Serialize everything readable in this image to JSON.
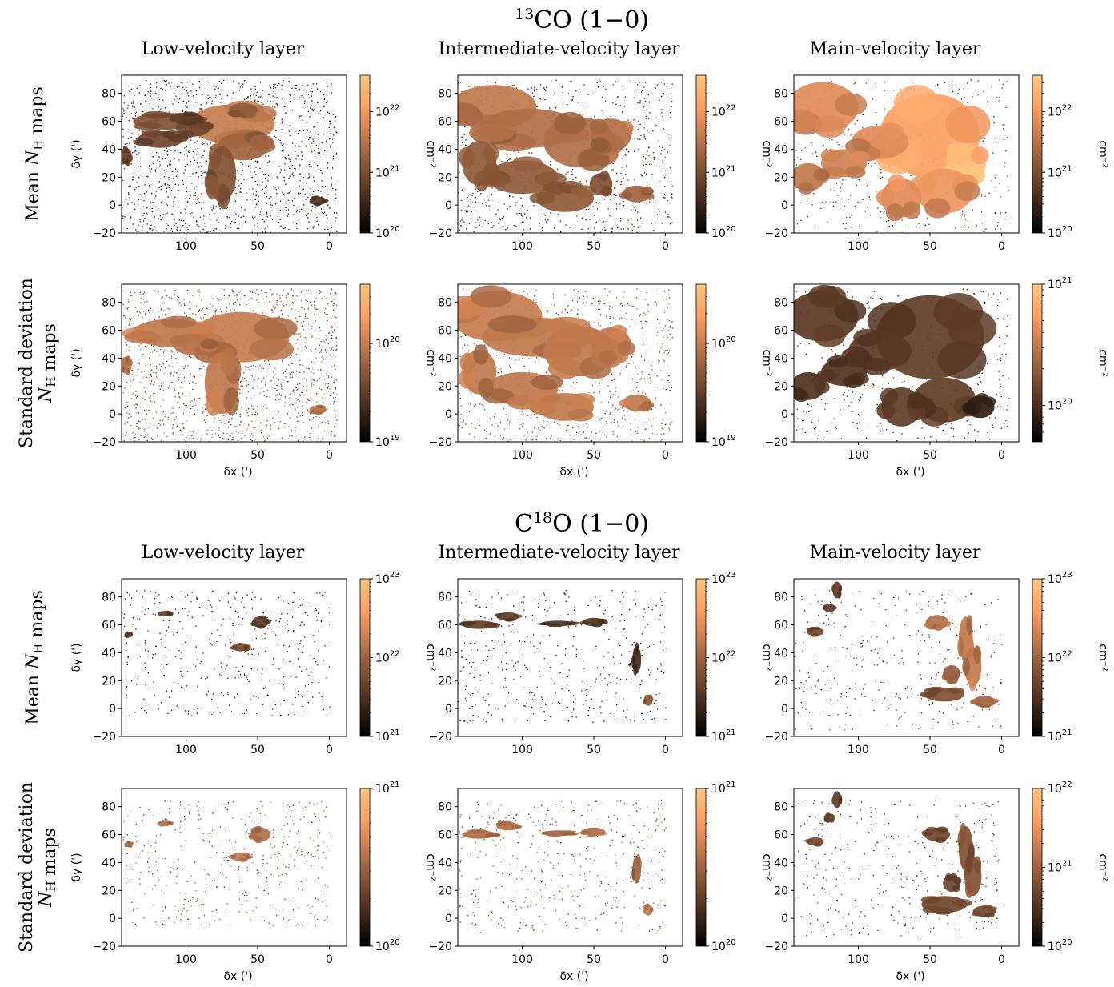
{
  "figure": {
    "sections": [
      {
        "tracer": "CO (1−0)",
        "tracer_superscript": "13",
        "tracer_prefix": "",
        "columns": [
          "Low-velocity layer",
          "Intermediate-velocity layer",
          "Main-velocity layer"
        ],
        "rows": [
          {
            "label_lines": [
              "Mean N_H maps"
            ]
          },
          {
            "label_lines": [
              "Standard deviation",
              "N_H maps"
            ]
          }
        ]
      },
      {
        "tracer": "O (1−0)",
        "tracer_superscript": "18",
        "tracer_prefix": "C",
        "columns": [
          "Low-velocity layer",
          "Intermediate-velocity layer",
          "Main-velocity layer"
        ],
        "rows": [
          {
            "label_lines": [
              "Mean N_H maps"
            ]
          },
          {
            "label_lines": [
              "Standard deviation",
              "N_H maps"
            ]
          }
        ]
      }
    ],
    "axis": {
      "xlabel": "δx (')",
      "ylabel": "δy (')",
      "xticks": [
        "100",
        "50",
        "0"
      ],
      "yticks": [
        "−20",
        "0",
        "20",
        "40",
        "60",
        "80"
      ],
      "colorbar_label": "cm⁻²"
    },
    "colormap": {
      "name": "copper",
      "low": "#000000",
      "high": "#ffc77f"
    }
  },
  "chart_data": [
    {
      "type": "heatmap",
      "id": "13co-mean-low",
      "tracer": "13CO (1−0)",
      "layer": "Low-velocity layer",
      "quantity": "Mean N_H",
      "xlabel": "δx (')",
      "ylabel": "δy (')",
      "xlim": [
        145,
        -12
      ],
      "ylim": [
        -20,
        93
      ],
      "xticks": [
        100,
        50,
        0
      ],
      "yticks": [
        -20,
        0,
        20,
        40,
        60,
        80
      ],
      "colorbar": {
        "scale": "log",
        "range": [
          1e+20,
          4e+22
        ],
        "ticks": [
          "10^20",
          "10^21",
          "10^22"
        ],
        "label": "cm^-2"
      },
      "blobs": [
        [
          68,
          58,
          30,
          14,
          0.62
        ],
        [
          60,
          42,
          18,
          10,
          0.5
        ],
        [
          115,
          60,
          22,
          6,
          0.4
        ],
        [
          118,
          47,
          16,
          6,
          0.35
        ],
        [
          75,
          22,
          10,
          20,
          0.4
        ],
        [
          142,
          35,
          4,
          6,
          0.3
        ],
        [
          95,
          55,
          12,
          6,
          0.35
        ],
        [
          60,
          68,
          10,
          5,
          0.45
        ],
        [
          8,
          3,
          6,
          3,
          0.25
        ],
        [
          100,
          62,
          12,
          4,
          0.3
        ]
      ],
      "speckle": {
        "n": 1400,
        "region": [
          145,
          -5,
          -20,
          90
        ],
        "level": 0.15
      }
    },
    {
      "type": "heatmap",
      "id": "13co-mean-int",
      "tracer": "13CO (1−0)",
      "layer": "Intermediate-velocity layer",
      "quantity": "Mean N_H",
      "xlabel": "δx (')",
      "ylabel": "δy (')",
      "xlim": [
        145,
        -12
      ],
      "ylim": [
        -20,
        93
      ],
      "xticks": [
        100,
        50,
        0
      ],
      "yticks": [
        -20,
        0,
        20,
        40,
        60,
        80
      ],
      "colorbar": {
        "scale": "log",
        "range": [
          1e+20,
          4e+22
        ],
        "ticks": [
          "10^20",
          "10^21",
          "10^22"
        ],
        "label": "cm^-2"
      },
      "blobs": [
        [
          120,
          70,
          30,
          16,
          0.6
        ],
        [
          95,
          55,
          35,
          14,
          0.55
        ],
        [
          60,
          45,
          25,
          18,
          0.55
        ],
        [
          38,
          50,
          14,
          12,
          0.55
        ],
        [
          20,
          8,
          10,
          6,
          0.5
        ],
        [
          100,
          20,
          25,
          12,
          0.45
        ],
        [
          70,
          5,
          20,
          10,
          0.45
        ],
        [
          130,
          30,
          12,
          16,
          0.45
        ],
        [
          45,
          15,
          8,
          8,
          0.4
        ]
      ],
      "speckle": {
        "n": 900,
        "region": [
          145,
          -5,
          -20,
          90
        ],
        "level": 0.2
      }
    },
    {
      "type": "heatmap",
      "id": "13co-mean-main",
      "tracer": "13CO (1−0)",
      "layer": "Main-velocity layer",
      "quantity": "Mean N_H",
      "xlabel": "δx (')",
      "ylabel": "δy (')",
      "xlim": [
        145,
        -12
      ],
      "ylim": [
        -20,
        93
      ],
      "xticks": [
        100,
        50,
        0
      ],
      "yticks": [
        -20,
        0,
        20,
        40,
        60,
        80
      ],
      "colorbar": {
        "scale": "log",
        "range": [
          1e+20,
          4e+22
        ],
        "ticks": [
          "10^20",
          "10^21",
          "10^22"
        ],
        "label": "cm^-2"
      },
      "blobs": [
        [
          50,
          50,
          35,
          30,
          0.8
        ],
        [
          25,
          30,
          14,
          14,
          0.95
        ],
        [
          125,
          70,
          25,
          18,
          0.7
        ],
        [
          85,
          45,
          20,
          12,
          0.7
        ],
        [
          40,
          10,
          20,
          16,
          0.75
        ],
        [
          110,
          30,
          16,
          10,
          0.65
        ],
        [
          135,
          20,
          12,
          10,
          0.6
        ],
        [
          70,
          5,
          14,
          14,
          0.7
        ]
      ],
      "speckle": {
        "n": 500,
        "region": [
          145,
          -5,
          -20,
          90
        ],
        "level": 0.3
      }
    },
    {
      "type": "heatmap",
      "id": "13co-std-low",
      "tracer": "13CO (1−0)",
      "layer": "Low-velocity layer",
      "quantity": "Standard deviation N_H",
      "xlabel": "δx (')",
      "ylabel": "δy (')",
      "xlim": [
        145,
        -12
      ],
      "ylim": [
        -20,
        93
      ],
      "xticks": [
        100,
        50,
        0
      ],
      "yticks": [
        -20,
        0,
        20,
        40,
        60,
        80
      ],
      "colorbar": {
        "scale": "log",
        "range": [
          1e+19,
          4e+20
        ],
        "ticks": [
          "10^19",
          "10^20"
        ],
        "label": "cm^-2"
      },
      "blobs": [
        [
          62,
          55,
          34,
          18,
          0.62
        ],
        [
          110,
          58,
          28,
          10,
          0.6
        ],
        [
          75,
          22,
          12,
          22,
          0.6
        ],
        [
          142,
          35,
          4,
          6,
          0.55
        ],
        [
          8,
          3,
          6,
          3,
          0.55
        ],
        [
          95,
          50,
          14,
          8,
          0.58
        ]
      ],
      "speckle": {
        "n": 1500,
        "region": [
          145,
          -5,
          -20,
          90
        ],
        "level": 0.5
      }
    },
    {
      "type": "heatmap",
      "id": "13co-std-int",
      "tracer": "13CO (1−0)",
      "layer": "Intermediate-velocity layer",
      "quantity": "Standard deviation N_H",
      "xlabel": "δx (')",
      "ylabel": "δy (')",
      "xlim": [
        145,
        -12
      ],
      "ylim": [
        -20,
        93
      ],
      "xticks": [
        100,
        50,
        0
      ],
      "yticks": [
        -20,
        0,
        20,
        40,
        60,
        80
      ],
      "colorbar": {
        "scale": "log",
        "range": [
          1e+19,
          4e+20
        ],
        "ticks": [
          "10^19",
          "10^20"
        ],
        "label": "cm^-2"
      },
      "blobs": [
        [
          118,
          70,
          32,
          18,
          0.62
        ],
        [
          90,
          55,
          38,
          14,
          0.6
        ],
        [
          60,
          45,
          25,
          18,
          0.6
        ],
        [
          38,
          50,
          14,
          12,
          0.6
        ],
        [
          20,
          8,
          10,
          6,
          0.6
        ],
        [
          100,
          18,
          25,
          12,
          0.6
        ],
        [
          70,
          5,
          20,
          10,
          0.6
        ],
        [
          130,
          30,
          12,
          16,
          0.6
        ]
      ],
      "speckle": {
        "n": 900,
        "region": [
          145,
          -5,
          -20,
          90
        ],
        "level": 0.5
      }
    },
    {
      "type": "heatmap",
      "id": "13co-std-main",
      "tracer": "13CO (1−0)",
      "layer": "Main-velocity layer",
      "quantity": "Standard deviation N_H",
      "xlabel": "δx (')",
      "ylabel": "δy (')",
      "xlim": [
        145,
        -12
      ],
      "ylim": [
        -20,
        93
      ],
      "xticks": [
        100,
        50,
        0
      ],
      "yticks": [
        -20,
        0,
        20,
        40,
        60,
        80
      ],
      "colorbar": {
        "scale": "log",
        "range": [
          5e+19,
          1e+21
        ],
        "ticks": [
          "10^20",
          "10^21"
        ],
        "label": "cm^-2"
      },
      "blobs": [
        [
          50,
          55,
          38,
          30,
          0.3
        ],
        [
          125,
          70,
          25,
          18,
          0.28
        ],
        [
          85,
          45,
          22,
          14,
          0.28
        ],
        [
          40,
          10,
          22,
          16,
          0.3
        ],
        [
          110,
          30,
          16,
          10,
          0.25
        ],
        [
          135,
          20,
          12,
          10,
          0.25
        ],
        [
          70,
          5,
          14,
          14,
          0.3
        ],
        [
          15,
          5,
          10,
          8,
          0.15
        ]
      ],
      "speckle": {
        "n": 500,
        "region": [
          145,
          -5,
          -20,
          90
        ],
        "level": 0.2
      }
    },
    {
      "type": "heatmap",
      "id": "c18o-mean-low",
      "tracer": "C18O (1−0)",
      "layer": "Low-velocity layer",
      "quantity": "Mean N_H",
      "xlabel": "δx (')",
      "ylabel": "δy (')",
      "xlim": [
        145,
        -12
      ],
      "ylim": [
        -20,
        93
      ],
      "xticks": [
        100,
        50,
        0
      ],
      "yticks": [
        -20,
        0,
        20,
        40,
        60,
        80
      ],
      "colorbar": {
        "scale": "log",
        "range": [
          1e+21,
          1e+23
        ],
        "ticks": [
          "10^21",
          "10^22",
          "10^23"
        ],
        "label": "cm^-2"
      },
      "blobs": [
        [
          48,
          62,
          6,
          4,
          0.3
        ],
        [
          62,
          44,
          6,
          3,
          0.35
        ],
        [
          115,
          68,
          5,
          2,
          0.3
        ],
        [
          140,
          53,
          3,
          2,
          0.25
        ]
      ],
      "speckle": {
        "n": 450,
        "region": [
          145,
          0,
          -5,
          85
        ],
        "level": 0.15
      }
    },
    {
      "type": "heatmap",
      "id": "c18o-mean-int",
      "tracer": "C18O (1−0)",
      "layer": "Intermediate-velocity layer",
      "quantity": "Mean N_H",
      "xlabel": "δx (')",
      "ylabel": "δy (')",
      "xlim": [
        145,
        -12
      ],
      "ylim": [
        -20,
        93
      ],
      "xticks": [
        100,
        50,
        0
      ],
      "yticks": [
        -20,
        0,
        20,
        40,
        60,
        80
      ],
      "colorbar": {
        "scale": "log",
        "range": [
          1e+21,
          1e+23
        ],
        "ticks": [
          "10^21",
          "10^22",
          "10^23"
        ],
        "label": "cm^-2"
      },
      "blobs": [
        [
          130,
          60,
          12,
          3,
          0.3
        ],
        [
          110,
          66,
          8,
          3,
          0.3
        ],
        [
          75,
          61,
          12,
          2,
          0.25
        ],
        [
          50,
          62,
          8,
          3,
          0.25
        ],
        [
          12,
          6,
          3,
          4,
          0.45
        ],
        [
          20,
          35,
          3,
          10,
          0.2
        ]
      ],
      "speckle": {
        "n": 450,
        "region": [
          145,
          0,
          -10,
          85
        ],
        "level": 0.15
      }
    },
    {
      "type": "heatmap",
      "id": "c18o-mean-main",
      "tracer": "C18O (1−0)",
      "layer": "Main-velocity layer",
      "quantity": "Mean N_H",
      "xlabel": "δx (')",
      "ylabel": "δy (')",
      "xlim": [
        145,
        -12
      ],
      "ylim": [
        -20,
        93
      ],
      "xticks": [
        100,
        50,
        0
      ],
      "yticks": [
        -20,
        0,
        20,
        40,
        60,
        80
      ],
      "colorbar": {
        "scale": "log",
        "range": [
          1e+21,
          1e+23
        ],
        "ticks": [
          "10^21",
          "10^22",
          "10^23"
        ],
        "label": "cm^-2"
      },
      "blobs": [
        [
          45,
          62,
          8,
          5,
          0.55
        ],
        [
          25,
          50,
          5,
          16,
          0.6
        ],
        [
          20,
          30,
          6,
          14,
          0.6
        ],
        [
          12,
          5,
          8,
          4,
          0.5
        ],
        [
          40,
          10,
          14,
          5,
          0.4
        ],
        [
          130,
          55,
          6,
          3,
          0.35
        ],
        [
          120,
          72,
          4,
          3,
          0.3
        ],
        [
          115,
          85,
          3,
          6,
          0.3
        ],
        [
          35,
          25,
          6,
          6,
          0.45
        ]
      ],
      "speckle": {
        "n": 350,
        "region": [
          145,
          0,
          -15,
          85
        ],
        "level": 0.3
      }
    },
    {
      "type": "heatmap",
      "id": "c18o-std-low",
      "tracer": "C18O (1−0)",
      "layer": "Low-velocity layer",
      "quantity": "Standard deviation N_H",
      "xlabel": "δx (')",
      "ylabel": "δy (')",
      "xlim": [
        145,
        -12
      ],
      "ylim": [
        -20,
        93
      ],
      "xticks": [
        100,
        50,
        0
      ],
      "yticks": [
        -20,
        0,
        20,
        40,
        60,
        80
      ],
      "colorbar": {
        "scale": "log",
        "range": [
          1e+20,
          1e+21
        ],
        "ticks": [
          "10^20",
          "10^21"
        ],
        "label": "cm^-2"
      },
      "blobs": [
        [
          48,
          60,
          7,
          5,
          0.55
        ],
        [
          62,
          44,
          7,
          3,
          0.6
        ],
        [
          115,
          68,
          5,
          2,
          0.55
        ],
        [
          140,
          53,
          3,
          2,
          0.5
        ]
      ],
      "speckle": {
        "n": 450,
        "region": [
          145,
          0,
          -5,
          85
        ],
        "level": 0.5
      }
    },
    {
      "type": "heatmap",
      "id": "c18o-std-int",
      "tracer": "C18O (1−0)",
      "layer": "Intermediate-velocity layer",
      "quantity": "Standard deviation N_H",
      "xlabel": "δx (')",
      "ylabel": "δy (')",
      "xlim": [
        145,
        -12
      ],
      "ylim": [
        -20,
        93
      ],
      "xticks": [
        100,
        50,
        0
      ],
      "yticks": [
        -20,
        0,
        20,
        40,
        60,
        80
      ],
      "colorbar": {
        "scale": "log",
        "range": [
          1e+20,
          1e+21
        ],
        "ticks": [
          "10^20",
          "10^21"
        ],
        "label": "cm^-2"
      },
      "blobs": [
        [
          130,
          60,
          12,
          3,
          0.55
        ],
        [
          110,
          66,
          8,
          3,
          0.55
        ],
        [
          75,
          61,
          12,
          2,
          0.5
        ],
        [
          50,
          62,
          8,
          3,
          0.55
        ],
        [
          12,
          6,
          3,
          4,
          0.6
        ],
        [
          20,
          35,
          3,
          10,
          0.5
        ]
      ],
      "speckle": {
        "n": 450,
        "region": [
          145,
          0,
          -10,
          85
        ],
        "level": 0.45
      }
    },
    {
      "type": "heatmap",
      "id": "c18o-std-main",
      "tracer": "C18O (1−0)",
      "layer": "Main-velocity layer",
      "quantity": "Standard deviation N_H",
      "xlabel": "δx (')",
      "ylabel": "δy (')",
      "xlim": [
        145,
        -12
      ],
      "ylim": [
        -20,
        93
      ],
      "xticks": [
        100,
        50,
        0
      ],
      "yticks": [
        -20,
        0,
        20,
        40,
        60,
        80
      ],
      "colorbar": {
        "scale": "log",
        "range": [
          1e+20,
          1e+22
        ],
        "ticks": [
          "10^20",
          "10^21",
          "10^22"
        ],
        "label": "cm^-2"
      },
      "blobs": [
        [
          45,
          60,
          9,
          5,
          0.35
        ],
        [
          25,
          50,
          5,
          16,
          0.4
        ],
        [
          20,
          30,
          6,
          14,
          0.4
        ],
        [
          12,
          5,
          8,
          4,
          0.35
        ],
        [
          40,
          10,
          16,
          6,
          0.35
        ],
        [
          130,
          55,
          6,
          3,
          0.35
        ],
        [
          120,
          72,
          4,
          3,
          0.3
        ],
        [
          115,
          85,
          3,
          6,
          0.3
        ],
        [
          35,
          25,
          6,
          6,
          0.35
        ]
      ],
      "speckle": {
        "n": 350,
        "region": [
          145,
          0,
          -15,
          85
        ],
        "level": 0.3
      }
    }
  ]
}
